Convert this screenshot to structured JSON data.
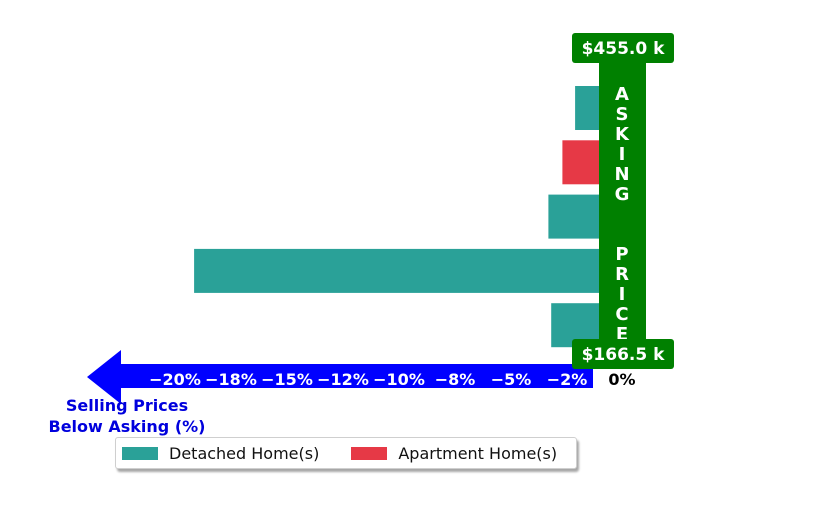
{
  "chart_data": {
    "type": "bar",
    "orientation": "horizontal",
    "bars": [
      {
        "series": "Detached Home(s)",
        "value": -1.7
      },
      {
        "series": "Apartment Home(s)",
        "value": -2.6
      },
      {
        "series": "Detached Home(s)",
        "value": -3.6
      },
      {
        "series": "Detached Home(s)",
        "value": -28.8
      },
      {
        "series": "Detached Home(s)",
        "value": -3.4
      }
    ],
    "x_ticks": [
      "−20%",
      "−18%",
      "−15%",
      "−12%",
      "−10%",
      "−8%",
      "−5%",
      "−2%"
    ],
    "zero_label": "0%",
    "axis_label_line1": "Selling Prices",
    "axis_label_line2": "Below Asking (%)",
    "asking_price_label": "ASKING  PRICE",
    "price_top": "$455.0 k",
    "price_bottom": "$166.5 k",
    "legend": [
      {
        "label": "Detached Home(s)",
        "color": "#2aa198"
      },
      {
        "label": "Apartment Home(s)",
        "color": "#e63946"
      }
    ],
    "colors": {
      "detached": "#2aa198",
      "apartment": "#e63946",
      "asking_band": "#008000",
      "axis_arrow": "#0000ff"
    }
  }
}
